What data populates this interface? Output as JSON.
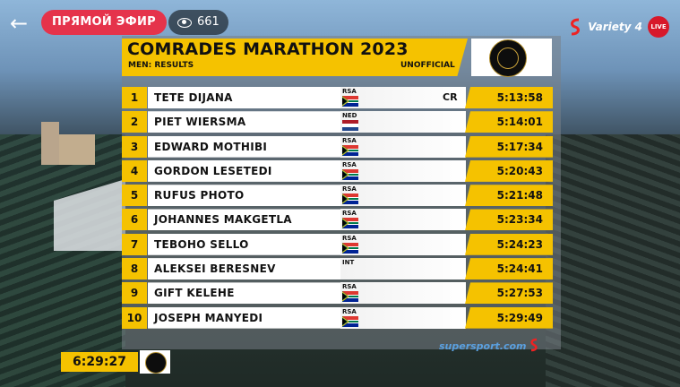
{
  "overlay": {
    "live_label": "ПРЯМОЙ ЭФИР",
    "viewer_count": "661",
    "channel_name": "Variety 4",
    "live_badge": "LIVE",
    "watermark": "supersport.com"
  },
  "board": {
    "title": "COMRADES MARATHON 2023",
    "subtitle": "MEN: RESULTS",
    "status": "UNOFFICIAL",
    "results": [
      {
        "pos": "1",
        "name": "TETE DIJANA",
        "country": "RSA",
        "note": "CR",
        "time": "5:13:58"
      },
      {
        "pos": "2",
        "name": "PIET WIERSMA",
        "country": "NED",
        "note": "",
        "time": "5:14:01"
      },
      {
        "pos": "3",
        "name": "EDWARD MOTHIBI",
        "country": "RSA",
        "note": "",
        "time": "5:17:34"
      },
      {
        "pos": "4",
        "name": "GORDON LESETEDI",
        "country": "RSA",
        "note": "",
        "time": "5:20:43"
      },
      {
        "pos": "5",
        "name": "RUFUS PHOTO",
        "country": "RSA",
        "note": "",
        "time": "5:21:48"
      },
      {
        "pos": "6",
        "name": "JOHANNES MAKGETLA",
        "country": "RSA",
        "note": "",
        "time": "5:23:34"
      },
      {
        "pos": "7",
        "name": "TEBOHO SELLO",
        "country": "RSA",
        "note": "",
        "time": "5:24:23"
      },
      {
        "pos": "8",
        "name": "ALEKSEI BERESNEV",
        "country": "INT",
        "note": "",
        "time": "5:24:41"
      },
      {
        "pos": "9",
        "name": "GIFT KELEHE",
        "country": "RSA",
        "note": "",
        "time": "5:27:53"
      },
      {
        "pos": "10",
        "name": "JOSEPH MANYEDI",
        "country": "RSA",
        "note": "",
        "time": "5:29:49"
      }
    ]
  },
  "race_clock": "6:29:27",
  "colors": {
    "accent": "#f5c200",
    "live_pill": "#e5334b"
  }
}
